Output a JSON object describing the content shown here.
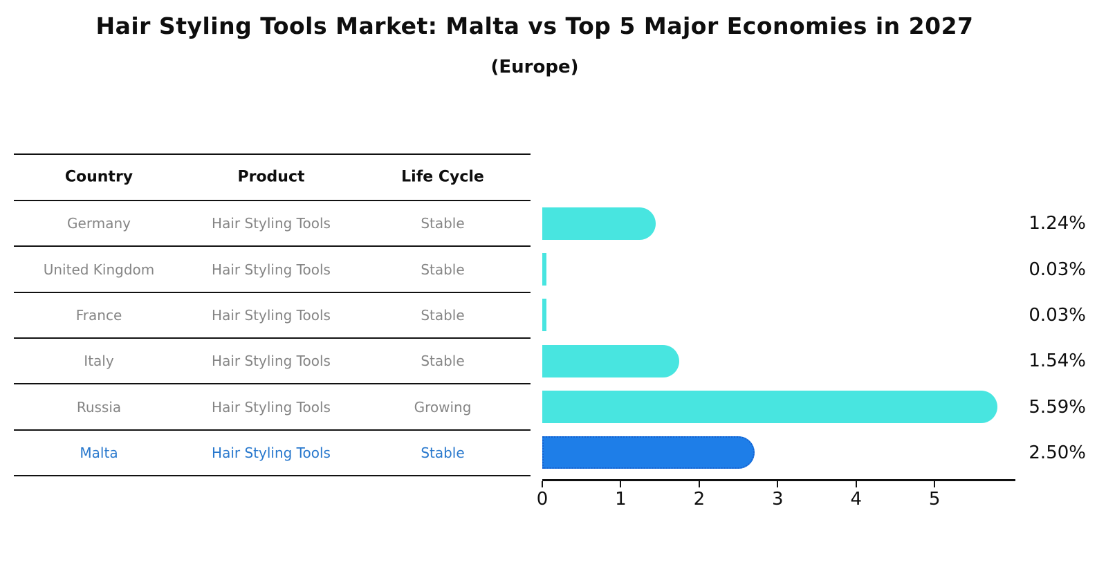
{
  "title": "Hair Styling Tools Market: Malta vs Top 5 Major Economies in 2027",
  "subtitle": "(Europe)",
  "table": {
    "headers": [
      "Country",
      "Product",
      "Life Cycle"
    ],
    "rows": [
      {
        "country": "Germany",
        "product": "Hair Styling Tools",
        "life_cycle": "Stable",
        "highlight": false
      },
      {
        "country": "United Kingdom",
        "product": "Hair Styling Tools",
        "life_cycle": "Stable",
        "highlight": false
      },
      {
        "country": "France",
        "product": "Hair Styling Tools",
        "life_cycle": "Stable",
        "highlight": false
      },
      {
        "country": "Italy",
        "product": "Hair Styling Tools",
        "life_cycle": "Stable",
        "highlight": false
      },
      {
        "country": "Russia",
        "product": "Hair Styling Tools",
        "life_cycle": "Growing",
        "highlight": false
      },
      {
        "country": "Malta",
        "product": "Hair Styling Tools",
        "life_cycle": "Stable",
        "highlight": true
      }
    ]
  },
  "chart_data": {
    "type": "bar",
    "orientation": "horizontal",
    "title": "Hair Styling Tools Market: Malta vs Top 5 Major Economies in 2027 (Europe)",
    "categories": [
      "Germany",
      "United Kingdom",
      "France",
      "Italy",
      "Russia",
      "Malta"
    ],
    "values": [
      1.24,
      0.03,
      0.03,
      1.54,
      5.59,
      2.5
    ],
    "value_labels": [
      "1.24%",
      "0.03%",
      "0.03%",
      "1.54%",
      "5.59%",
      "2.50%"
    ],
    "x_ticks": [
      "0",
      "1",
      "2",
      "3",
      "4",
      "5"
    ],
    "xlim": [
      0,
      6.03
    ],
    "grid": false,
    "legend": "none",
    "bar_color": "#48e5e0",
    "highlight_color": "#1e7ee8",
    "highlight_index": 5,
    "text_highlight_color": "#2878cd"
  }
}
